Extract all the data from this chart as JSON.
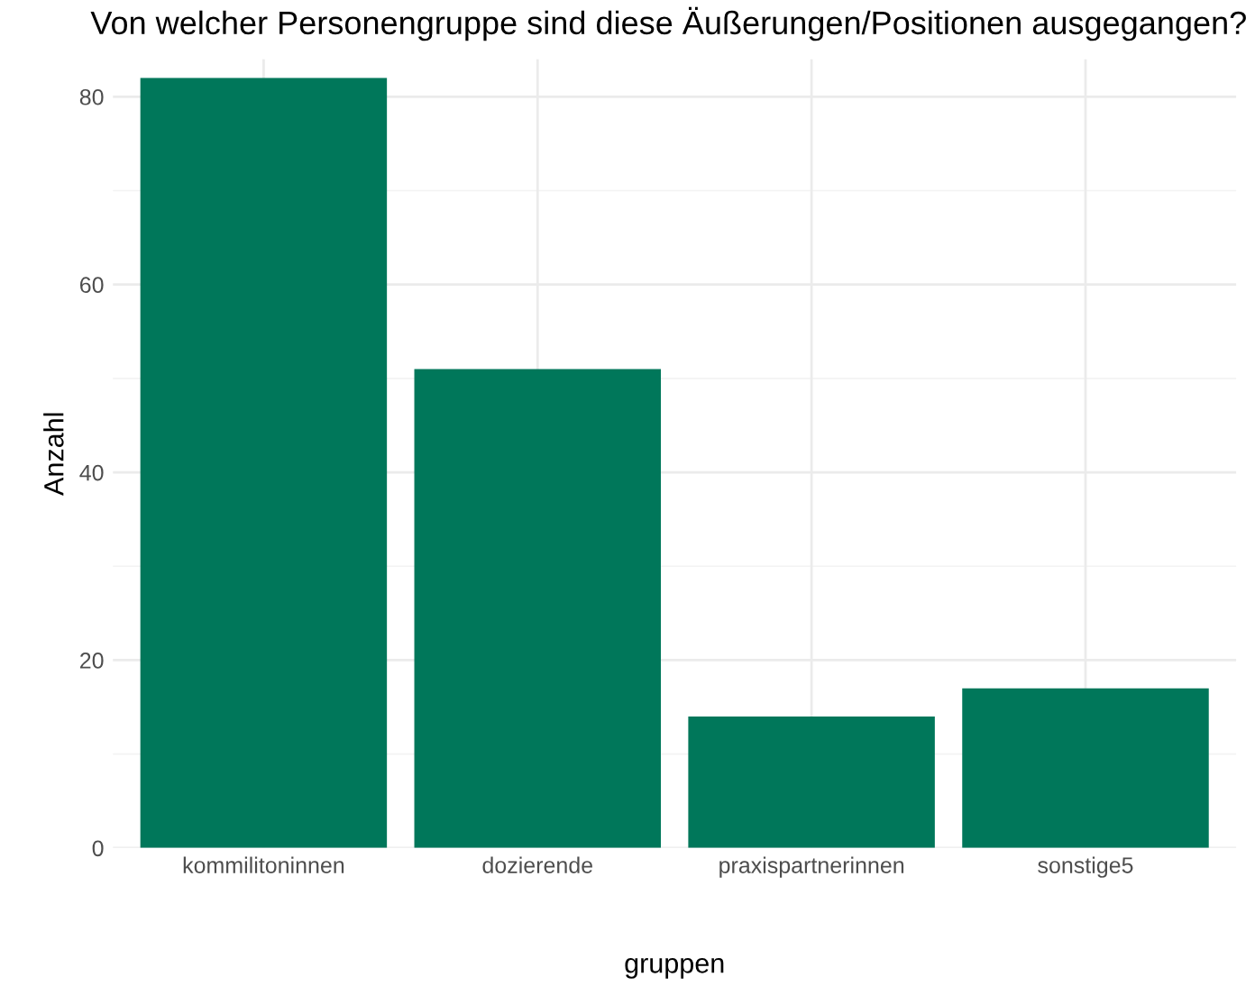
{
  "chart_data": {
    "type": "bar",
    "title": "Von welcher Personengruppe sind diese Äußerungen/Positionen ausgegangen?",
    "xlabel": "gruppen",
    "ylabel": "Anzahl",
    "categories": [
      "kommilitoninnen",
      "dozierende",
      "praxispartnerinnen",
      "sonstige5"
    ],
    "values": [
      82,
      51,
      14,
      17
    ],
    "color": "#00775a",
    "ylim": [
      0,
      84
    ],
    "yticks": [
      0,
      20,
      40,
      60,
      80
    ],
    "grid": true
  }
}
